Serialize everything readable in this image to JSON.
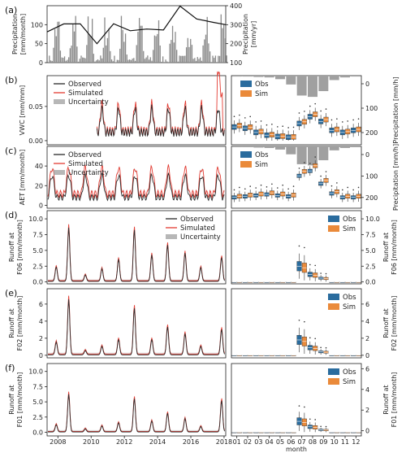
{
  "colors": {
    "obs": "#2a2a2a",
    "sim": "#e33b32",
    "unc": "#999999",
    "box_obs": "#2a6c9e",
    "box_sim": "#ea8a3a",
    "precip_bar": "#8a8a8a"
  },
  "years": [
    "2008",
    "2010",
    "2012",
    "2014",
    "2016",
    "2018"
  ],
  "months": [
    "01",
    "02",
    "03",
    "04",
    "05",
    "06",
    "07",
    "08",
    "09",
    "10",
    "11",
    "12"
  ],
  "xlabel": "month",
  "panels": [
    {
      "id": "a",
      "label": "(a)",
      "ylabel_left": [
        "Precipitation",
        "[mm/month]"
      ],
      "ylabel_right": [
        "Precipitation",
        "[mm/yr]"
      ],
      "left_ticks": [
        "0",
        "50",
        "100"
      ],
      "right_ticks": [
        "100",
        "200",
        "300",
        "400"
      ]
    },
    {
      "id": "b",
      "label": "(b)",
      "ylabel": "VWC [mm/mm]",
      "ticks": [
        "0.00",
        "0.05"
      ],
      "legend": [
        "Observed",
        "Simulated",
        "Uncertainty"
      ],
      "box_legend": [
        "Obs",
        "Sim"
      ],
      "right_ylabel": "Precipitation [mm/h]",
      "right_ticks": [
        "0",
        "100",
        "200"
      ]
    },
    {
      "id": "c",
      "label": "(c)",
      "ylabel": "AET [mm/month]",
      "ticks": [
        "0",
        "20",
        "40"
      ],
      "legend": [
        "Observed",
        "Simulated",
        "Uncertainty"
      ],
      "box_legend": [
        "Obs",
        "Sim"
      ],
      "right_ylabel": "Precipitation [mm/h]",
      "right_ticks": [
        "0",
        "100",
        "200"
      ]
    },
    {
      "id": "d",
      "label": "(d)",
      "ylabel": [
        "Runoff at",
        "F06 [mm/month]"
      ],
      "ticks": [
        "0.0",
        "2.5",
        "5.0",
        "7.5",
        "10.0"
      ],
      "legend": [
        "Observed",
        "Simulated",
        "Uncertainty"
      ],
      "box_legend": [
        "Obs",
        "Sim"
      ],
      "right_ylabel": [
        "Runoff at",
        "F06 [mm/month]"
      ],
      "right_ticks": [
        "0.0",
        "2.5",
        "5.0",
        "7.5",
        "10.0"
      ]
    },
    {
      "id": "e",
      "label": "(e)",
      "ylabel": [
        "Runoff at",
        "F02 [mm/month]"
      ],
      "ticks": [
        "0",
        "2",
        "4",
        "6"
      ],
      "box_legend": [
        "Obs",
        "Sim"
      ],
      "right_ylabel": [
        "Runoff at",
        "F02 [mm/month]"
      ],
      "right_ticks": [
        "0",
        "2",
        "4",
        "6"
      ]
    },
    {
      "id": "f",
      "label": "(f)",
      "ylabel": [
        "Runoff at",
        "F01 [mm/month]"
      ],
      "ticks": [
        "0.0",
        "2.5",
        "5.0",
        "7.5",
        "10.0"
      ],
      "box_legend": [
        "Obs",
        "Sim"
      ],
      "right_ylabel": [
        "Runoff at",
        "F01 [mm/month]"
      ],
      "right_ticks": [
        "0",
        "2",
        "4",
        "6"
      ]
    }
  ],
  "chart_data": [
    {
      "type": "bar",
      "panel": "a",
      "series": [
        {
          "values": "monthly precipitation 2007-2018 (mm/month)"
        },
        {
          "annual_line": [
            262,
            304,
            304,
            200,
            305,
            268,
            277,
            272,
            398,
            330,
            312
          ]
        }
      ],
      "ylim_left": [
        0,
        150
      ],
      "ylim_right": [
        100,
        400
      ]
    },
    {
      "type": "line",
      "panel": "b",
      "x_range": [
        "2007-05",
        "2018-02"
      ],
      "ylim": [
        -0.005,
        0.09
      ],
      "start": "2010-05"
    },
    {
      "type": "line",
      "panel": "c",
      "x_range": [
        "2007-05",
        "2018-02"
      ],
      "ylim": [
        0,
        60
      ]
    },
    {
      "type": "line",
      "panel": "d",
      "peaks": [
        {
          "x": 2007.9,
          "y": 2.3
        },
        {
          "x": 2008.65,
          "y": 8.5
        },
        {
          "x": 2009.65,
          "y": 1.0
        },
        {
          "x": 2010.65,
          "y": 2.0
        },
        {
          "x": 2011.65,
          "y": 3.5
        },
        {
          "x": 2012.6,
          "y": 8.2
        },
        {
          "x": 2013.65,
          "y": 4.2
        },
        {
          "x": 2014.6,
          "y": 5.8
        },
        {
          "x": 2015.65,
          "y": 4.5
        },
        {
          "x": 2016.6,
          "y": 2.2
        },
        {
          "x": 2017.85,
          "y": 3.8
        }
      ],
      "ylim": [
        0,
        11
      ]
    },
    {
      "type": "line",
      "panel": "e",
      "peaks": [
        {
          "x": 2007.9,
          "y": 1.5
        },
        {
          "x": 2008.65,
          "y": 6.5
        },
        {
          "x": 2009.65,
          "y": 0.5
        },
        {
          "x": 2010.65,
          "y": 1.0
        },
        {
          "x": 2011.65,
          "y": 1.8
        },
        {
          "x": 2012.6,
          "y": 5.5
        },
        {
          "x": 2013.65,
          "y": 1.8
        },
        {
          "x": 2014.6,
          "y": 3.3
        },
        {
          "x": 2015.65,
          "y": 2.5
        },
        {
          "x": 2016.6,
          "y": 1.0
        },
        {
          "x": 2017.85,
          "y": 3.0
        }
      ],
      "ylim": [
        -0.3,
        7.5
      ]
    },
    {
      "type": "line",
      "panel": "f",
      "peaks": [
        {
          "x": 2007.9,
          "y": 1.2
        },
        {
          "x": 2008.65,
          "y": 6.2
        },
        {
          "x": 2009.65,
          "y": 0.5
        },
        {
          "x": 2010.65,
          "y": 1.0
        },
        {
          "x": 2011.65,
          "y": 1.5
        },
        {
          "x": 2012.6,
          "y": 5.5
        },
        {
          "x": 2013.65,
          "y": 1.8
        },
        {
          "x": 2014.6,
          "y": 3.1
        },
        {
          "x": 2015.65,
          "y": 2.2
        },
        {
          "x": 2016.6,
          "y": 0.9
        },
        {
          "x": 2017.85,
          "y": 5.2
        }
      ],
      "ylim": [
        -0.5,
        11
      ]
    }
  ]
}
